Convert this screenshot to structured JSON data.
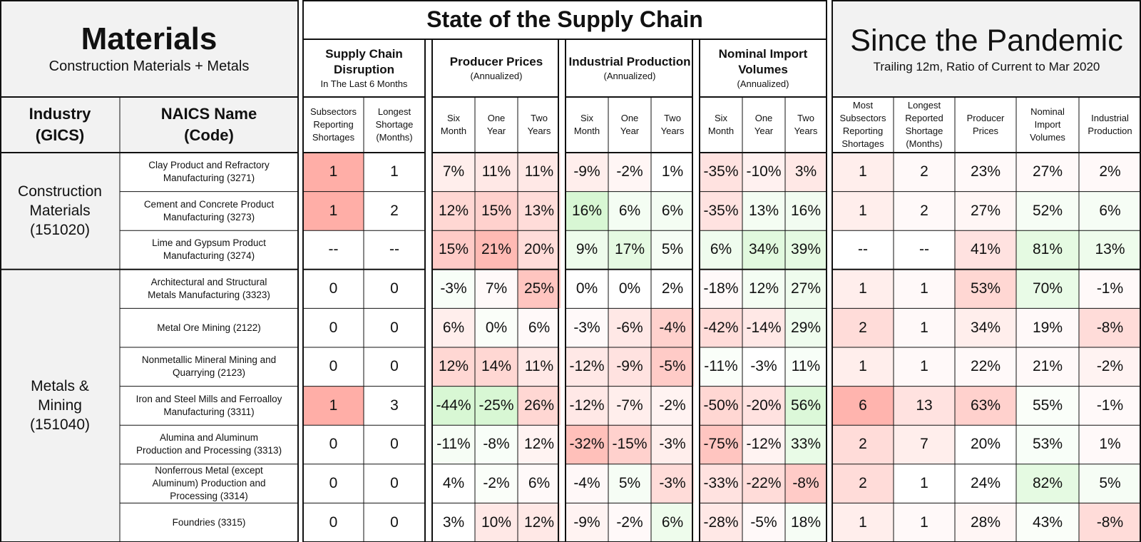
{
  "chart_data": {
    "type": "table",
    "panel_left": {
      "title": "Materials",
      "subtitle": "Construction Materials + Metals"
    },
    "panel_mid": {
      "title": "State of the Supply Chain"
    },
    "panel_right": {
      "title": "Since the Pandemic",
      "subtitle": "Trailing 12m, Ratio of Current to Mar 2020"
    },
    "column_headers": {
      "industry": [
        "Industry",
        "(GICS)"
      ],
      "naics": [
        "NAICS Name",
        "(Code)"
      ]
    },
    "groups": [
      {
        "title": "Supply Chain Disruption",
        "sub": "In The Last 6 Months",
        "cols": [
          [
            "Subsectors",
            "Reporting",
            "Shortages"
          ],
          [
            "Longest",
            "Shortage",
            "(Months)"
          ]
        ]
      },
      {
        "title": "Producer Prices",
        "sub": "(Annualized)",
        "cols": [
          [
            "Six",
            "Month"
          ],
          [
            "One",
            "Year"
          ],
          [
            "Two",
            "Years"
          ]
        ]
      },
      {
        "title": "Industrial Production",
        "sub": "(Annualized)",
        "cols": [
          [
            "Six",
            "Month"
          ],
          [
            "One",
            "Year"
          ],
          [
            "Two",
            "Years"
          ]
        ]
      },
      {
        "title": "Nominal Import Volumes",
        "sub": "(Annualized)",
        "cols": [
          [
            "Six",
            "Month"
          ],
          [
            "One",
            "Year"
          ],
          [
            "Two",
            "Years"
          ]
        ]
      }
    ],
    "pandemic_columns": [
      [
        "Most",
        "Subsectors",
        "Reporting",
        "Shortages"
      ],
      [
        "Longest",
        "Reported",
        "Shortage",
        "(Months)"
      ],
      [
        "Producer",
        "Prices"
      ],
      [
        "Nominal",
        "Import",
        "Volumes"
      ],
      [
        "Industrial",
        "Production"
      ]
    ],
    "industries": [
      {
        "name": "Construction Materials (151020)",
        "rows": [
          0,
          1,
          2
        ]
      },
      {
        "name": "Metals & Mining (151040)",
        "rows": [
          3,
          4,
          5,
          6,
          7,
          8,
          9
        ]
      }
    ],
    "rows": [
      {
        "naics": "Clay Product and Refractory Manufacturing (3271)",
        "values": [
          "1",
          "1",
          "7%",
          "11%",
          "11%",
          "-9%",
          "-2%",
          "1%",
          "-35%",
          "-10%",
          "3%",
          "1",
          "2",
          "23%",
          "27%",
          "2%"
        ],
        "tones": [
          [
            -1,
            0.7
          ],
          [
            0,
            0
          ],
          [
            -1,
            0.15
          ],
          [
            -1,
            0.2
          ],
          [
            -1,
            0.2
          ],
          [
            -1,
            0.15
          ],
          [
            -1,
            0.08
          ],
          [
            0,
            0
          ],
          [
            -1,
            0.25
          ],
          [
            -1,
            0.12
          ],
          [
            -1,
            0.2
          ],
          [
            -1,
            0.15
          ],
          [
            -1,
            0.05
          ],
          [
            -1,
            0.05
          ],
          [
            -1,
            0.05
          ],
          [
            -1,
            0.05
          ]
        ]
      },
      {
        "naics": "Cement and Concrete Product Manufacturing (3273)",
        "values": [
          "1",
          "2",
          "12%",
          "15%",
          "13%",
          "16%",
          "6%",
          "6%",
          "-35%",
          "13%",
          "16%",
          "1",
          "2",
          "27%",
          "52%",
          "6%"
        ],
        "tones": [
          [
            -1,
            0.7
          ],
          [
            0,
            0
          ],
          [
            -1,
            0.35
          ],
          [
            -1,
            0.4
          ],
          [
            -1,
            0.3
          ],
          [
            1,
            0.45
          ],
          [
            1,
            0.12
          ],
          [
            1,
            0.12
          ],
          [
            -1,
            0.25
          ],
          [
            1,
            0.12
          ],
          [
            1,
            0.15
          ],
          [
            -1,
            0.15
          ],
          [
            -1,
            0.05
          ],
          [
            -1,
            0.08
          ],
          [
            1,
            0.1
          ],
          [
            1,
            0.1
          ]
        ]
      },
      {
        "naics": "Lime and Gypsum Product Manufacturing (3274)",
        "values": [
          "--",
          "--",
          "15%",
          "21%",
          "20%",
          "9%",
          "17%",
          "5%",
          "6%",
          "34%",
          "39%",
          "--",
          "--",
          "41%",
          "81%",
          "13%"
        ],
        "tones": [
          [
            0,
            0
          ],
          [
            0,
            0
          ],
          [
            -1,
            0.45
          ],
          [
            -1,
            0.6
          ],
          [
            -1,
            0.3
          ],
          [
            1,
            0.2
          ],
          [
            1,
            0.3
          ],
          [
            1,
            0.1
          ],
          [
            1,
            0.18
          ],
          [
            1,
            0.35
          ],
          [
            1,
            0.3
          ],
          [
            0,
            0
          ],
          [
            0,
            0
          ],
          [
            -1,
            0.25
          ],
          [
            1,
            0.3
          ],
          [
            1,
            0.2
          ]
        ]
      },
      {
        "naics": "Architectural and Structural Metals Manufacturing (3323)",
        "values": [
          "0",
          "0",
          "-3%",
          "7%",
          "25%",
          "0%",
          "0%",
          "2%",
          "-18%",
          "12%",
          "27%",
          "1",
          "1",
          "53%",
          "70%",
          "-1%"
        ],
        "tones": [
          [
            0,
            0
          ],
          [
            0,
            0
          ],
          [
            1,
            0.08
          ],
          [
            -1,
            0.05
          ],
          [
            -1,
            0.5
          ],
          [
            0,
            0
          ],
          [
            0,
            0
          ],
          [
            0,
            0
          ],
          [
            -1,
            0.05
          ],
          [
            1,
            0.12
          ],
          [
            1,
            0.18
          ],
          [
            -1,
            0.15
          ],
          [
            -1,
            0.05
          ],
          [
            -1,
            0.35
          ],
          [
            1,
            0.25
          ],
          [
            -1,
            0.05
          ]
        ]
      },
      {
        "naics": "Metal Ore Mining (2122)",
        "values": [
          "0",
          "0",
          "6%",
          "0%",
          "6%",
          "-3%",
          "-6%",
          "-4%",
          "-42%",
          "-14%",
          "29%",
          "2",
          "1",
          "34%",
          "19%",
          "-8%"
        ],
        "tones": [
          [
            0,
            0
          ],
          [
            0,
            0
          ],
          [
            -1,
            0.15
          ],
          [
            1,
            0.06
          ],
          [
            -1,
            0.05
          ],
          [
            -1,
            0.05
          ],
          [
            -1,
            0.2
          ],
          [
            -1,
            0.4
          ],
          [
            -1,
            0.3
          ],
          [
            -1,
            0.2
          ],
          [
            1,
            0.18
          ],
          [
            -1,
            0.3
          ],
          [
            -1,
            0.05
          ],
          [
            -1,
            0.15
          ],
          [
            -1,
            0.05
          ],
          [
            -1,
            0.3
          ]
        ]
      },
      {
        "naics": "Nonmetallic Mineral Mining and Quarrying (2123)",
        "values": [
          "0",
          "0",
          "12%",
          "14%",
          "11%",
          "-12%",
          "-9%",
          "-5%",
          "-11%",
          "-3%",
          "11%",
          "1",
          "1",
          "22%",
          "21%",
          "-2%"
        ],
        "tones": [
          [
            0,
            0
          ],
          [
            0,
            0
          ],
          [
            -1,
            0.35
          ],
          [
            -1,
            0.35
          ],
          [
            -1,
            0.2
          ],
          [
            -1,
            0.2
          ],
          [
            -1,
            0.25
          ],
          [
            -1,
            0.45
          ],
          [
            1,
            0.06
          ],
          [
            0,
            0
          ],
          [
            1,
            0.08
          ],
          [
            -1,
            0.15
          ],
          [
            -1,
            0.05
          ],
          [
            -1,
            0.05
          ],
          [
            -1,
            0.05
          ],
          [
            -1,
            0.1
          ]
        ]
      },
      {
        "naics": "Iron and Steel Mills and Ferroalloy Manufacturing (3311)",
        "values": [
          "1",
          "3",
          "-44%",
          "-25%",
          "26%",
          "-12%",
          "-7%",
          "-2%",
          "-50%",
          "-20%",
          "56%",
          "6",
          "13",
          "63%",
          "55%",
          "-1%"
        ],
        "tones": [
          [
            -1,
            0.7
          ],
          [
            0,
            0
          ],
          [
            1,
            0.45
          ],
          [
            1,
            0.45
          ],
          [
            -1,
            0.35
          ],
          [
            -1,
            0.2
          ],
          [
            -1,
            0.15
          ],
          [
            -1,
            0.1
          ],
          [
            -1,
            0.35
          ],
          [
            -1,
            0.25
          ],
          [
            1,
            0.4
          ],
          [
            -1,
            0.65
          ],
          [
            -1,
            0.25
          ],
          [
            -1,
            0.4
          ],
          [
            1,
            0.06
          ],
          [
            -1,
            0.05
          ]
        ]
      },
      {
        "naics": "Alumina and Aluminum Production and Processing (3313)",
        "values": [
          "0",
          "0",
          "-11%",
          "-8%",
          "12%",
          "-32%",
          "-15%",
          "-3%",
          "-75%",
          "-12%",
          "33%",
          "2",
          "7",
          "20%",
          "53%",
          "1%"
        ],
        "tones": [
          [
            0,
            0
          ],
          [
            0,
            0
          ],
          [
            1,
            0.1
          ],
          [
            1,
            0.08
          ],
          [
            -1,
            0.1
          ],
          [
            -1,
            0.55
          ],
          [
            -1,
            0.4
          ],
          [
            -1,
            0.15
          ],
          [
            -1,
            0.5
          ],
          [
            -1,
            0.1
          ],
          [
            1,
            0.25
          ],
          [
            -1,
            0.3
          ],
          [
            -1,
            0.15
          ],
          [
            0,
            0
          ],
          [
            1,
            0.08
          ],
          [
            -1,
            0.05
          ]
        ]
      },
      {
        "naics": "Nonferrous Metal (except Aluminum) Production and Processing (3314)",
        "values": [
          "0",
          "0",
          "4%",
          "-2%",
          "6%",
          "-4%",
          "5%",
          "-3%",
          "-33%",
          "-22%",
          "-8%",
          "2",
          "1",
          "24%",
          "82%",
          "5%"
        ],
        "tones": [
          [
            0,
            0
          ],
          [
            0,
            0
          ],
          [
            0,
            0
          ],
          [
            1,
            0.06
          ],
          [
            -1,
            0.05
          ],
          [
            -1,
            0.06
          ],
          [
            1,
            0.1
          ],
          [
            -1,
            0.3
          ],
          [
            -1,
            0.25
          ],
          [
            -1,
            0.3
          ],
          [
            -1,
            0.45
          ],
          [
            -1,
            0.3
          ],
          [
            0,
            0
          ],
          [
            0,
            0
          ],
          [
            1,
            0.3
          ],
          [
            1,
            0.1
          ]
        ]
      },
      {
        "naics": "Foundries (3315)",
        "values": [
          "0",
          "0",
          "3%",
          "10%",
          "12%",
          "-9%",
          "-2%",
          "6%",
          "-28%",
          "-5%",
          "18%",
          "1",
          "1",
          "28%",
          "43%",
          "-8%"
        ],
        "tones": [
          [
            0,
            0
          ],
          [
            0,
            0
          ],
          [
            0,
            0
          ],
          [
            -1,
            0.2
          ],
          [
            -1,
            0.2
          ],
          [
            -1,
            0.1
          ],
          [
            -1,
            0.05
          ],
          [
            1,
            0.2
          ],
          [
            -1,
            0.2
          ],
          [
            -1,
            0.05
          ],
          [
            1,
            0.1
          ],
          [
            -1,
            0.15
          ],
          [
            -1,
            0.05
          ],
          [
            -1,
            0.08
          ],
          [
            1,
            0.06
          ],
          [
            -1,
            0.3
          ]
        ]
      }
    ],
    "colors": {
      "bad": "#ff8c82",
      "good": "#a8eea0",
      "line": "#111111",
      "header_gray": "#f2f2f2"
    }
  }
}
